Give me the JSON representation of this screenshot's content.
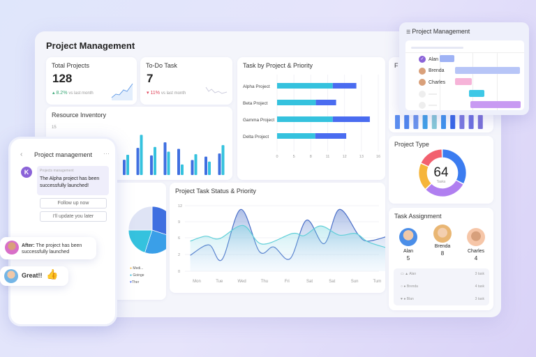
{
  "dashboard": {
    "title": "Project Management",
    "total_projects": {
      "label": "Total Projects",
      "value": "128",
      "change": "8.2%",
      "change_dir": "up",
      "change_color": "#3aa776",
      "compare": "vs last month"
    },
    "todo": {
      "label": "To-Do Task",
      "value": "7",
      "change": "11%",
      "change_dir": "down",
      "change_color": "#e0445a",
      "compare": "vs last month"
    },
    "resource": {
      "title": "Resource Inventory",
      "ymax_label": "15"
    },
    "top_right_card": {
      "title": "F"
    },
    "pie": {
      "legend": [
        {
          "label": "Medi...",
          "color": "#f4b63f"
        },
        {
          "label": "Goinge",
          "color": "#2fb8d6"
        },
        {
          "label": "Ther",
          "color": "#4a6cf0"
        }
      ]
    },
    "project_type": {
      "title": "Project Type",
      "center_value": "64",
      "center_label": "Tasks"
    },
    "task_assignment": {
      "title": "Task Assignment",
      "people": [
        {
          "name": "Alan",
          "count": "5"
        },
        {
          "name": "Brenda",
          "count": "8"
        },
        {
          "name": "Charles",
          "count": "4"
        }
      ],
      "rows": [
        {
          "name": "Alan",
          "tasks": "3 task"
        },
        {
          "name": "Brenda",
          "tasks": "4 task"
        },
        {
          "name": "Blan",
          "tasks": "3 task"
        }
      ]
    }
  },
  "chart_data": [
    {
      "type": "bar",
      "title": "Resource Inventory",
      "ylim": [
        0,
        15
      ],
      "categories": [
        "",
        "",
        "",
        "",
        "",
        "",
        "",
        ""
      ],
      "series": [
        {
          "values": [
            4.9,
            8.7,
            6.3,
            10.5,
            8.4,
            4.8,
            5.9,
            6.9
          ],
          "color": "#3f6fe0"
        },
        {
          "values": [
            6.5,
            12.9,
            9.0,
            7.5,
            3.4,
            6.7,
            4.3,
            9.6
          ],
          "color": "#35c2de"
        }
      ]
    },
    {
      "type": "bar",
      "orientation": "horizontal",
      "stacked": true,
      "title": "Task by Project & Priority",
      "categories": [
        "Alpha Project",
        "Beta Project",
        "Gamma Project",
        "Delta Project"
      ],
      "x_ticks": [
        "0",
        "5",
        "8",
        "11",
        "12",
        "13",
        "16"
      ],
      "series": [
        {
          "values": [
            11.3,
            8.9,
            11.3,
            8.8
          ],
          "color": "#35c2de"
        },
        {
          "values": [
            1.4,
            2.6,
            3.2,
            3.3
          ],
          "color": "#4a6cf0"
        }
      ]
    },
    {
      "type": "area",
      "title": "Project Task Status & Priority",
      "x_labels": [
        "Mon",
        "Tue",
        "Wed",
        "Thu",
        "Fri",
        "Sat",
        "Sat",
        "Sun",
        "Tum"
      ],
      "y_ticks": [
        "0",
        "2",
        "6",
        "9",
        "12"
      ],
      "series": [
        {
          "color": "#4a6fc8",
          "points": [
            [
              -0.26,
              1.9
            ],
            [
              0.57,
              4.3
            ],
            [
              1.15,
              1.4
            ],
            [
              1.98,
              11.3
            ],
            [
              2.81,
              2.7
            ],
            [
              3.44,
              3.8
            ],
            [
              4.17,
              1.5
            ],
            [
              4.9,
              9.3
            ],
            [
              5.68,
              4.6
            ],
            [
              6.35,
              11.3
            ],
            [
              7.19,
              6.6
            ],
            [
              7.6,
              5.2
            ],
            [
              8.44,
              6.2
            ]
          ]
        },
        {
          "color": "#5fcfd8",
          "points": [
            [
              -0.26,
              5.2
            ],
            [
              0.42,
              6.3
            ],
            [
              1.04,
              5.8
            ],
            [
              2.08,
              8.3
            ],
            [
              2.92,
              4.5
            ],
            [
              4.27,
              6.8
            ],
            [
              4.79,
              6.4
            ],
            [
              5.52,
              8.2
            ],
            [
              6.35,
              6.5
            ],
            [
              7.08,
              6.8
            ],
            [
              7.6,
              5.1
            ],
            [
              8.44,
              3.6
            ]
          ]
        }
      ]
    },
    {
      "type": "pie",
      "donut": true,
      "title": "Project Type",
      "slices": [
        {
          "share": 0.33,
          "color": "#3b7cf0"
        },
        {
          "share": 0.3,
          "color": "#b07ff0"
        },
        {
          "share": 0.19,
          "color": "#f6b53a"
        },
        {
          "share": 0.18,
          "color": "#f2606e"
        }
      ]
    },
    {
      "type": "bar",
      "title": "F",
      "values": [
        6,
        6,
        6,
        6,
        6,
        6,
        6,
        6,
        6,
        6
      ],
      "colors": [
        "#5b8ef0",
        "#4f86ee",
        "#6a94ee",
        "#3fa0e8",
        "#86c9d8",
        "#3e92ee",
        "#3565e8",
        "#7a78e0",
        "#6c6fe0",
        "#7a70d8"
      ]
    },
    {
      "type": "pie",
      "slices": [
        {
          "share": 0.3,
          "color": "#3f6fe0"
        },
        {
          "share": 0.25,
          "color": "#3a9fe8"
        },
        {
          "share": 0.2,
          "color": "#35c2de"
        },
        {
          "share": 0.25,
          "color": "#dfe4f5"
        }
      ]
    }
  ],
  "gantt": {
    "title": "Project Management",
    "rows": [
      {
        "name": "Alan",
        "start": 0.0,
        "end": 0.17,
        "color": "#9fb3f5",
        "checked": true
      },
      {
        "name": "Brenda",
        "start": 0.18,
        "end": 0.95,
        "color": "#b7c5f7"
      },
      {
        "name": "Charles",
        "start": 0.18,
        "end": 0.38,
        "color": "#f6b3d8"
      },
      {
        "name": "",
        "start": 0.35,
        "end": 0.53,
        "color": "#3ec8e6"
      },
      {
        "name": "",
        "start": 0.36,
        "end": 0.96,
        "color": "#c89af2"
      }
    ]
  },
  "phone": {
    "title": "Project management",
    "sender_initial": "K",
    "sender_label": "Projects management",
    "message": "The Alpha project has been successfully launched!",
    "buttons": [
      "Follow up now",
      "I'll update you later"
    ]
  },
  "chat": [
    {
      "bold": "After:",
      "text": "The project has been successfully launched"
    },
    {
      "bold": "Great!!",
      "emoji": "👍"
    }
  ]
}
